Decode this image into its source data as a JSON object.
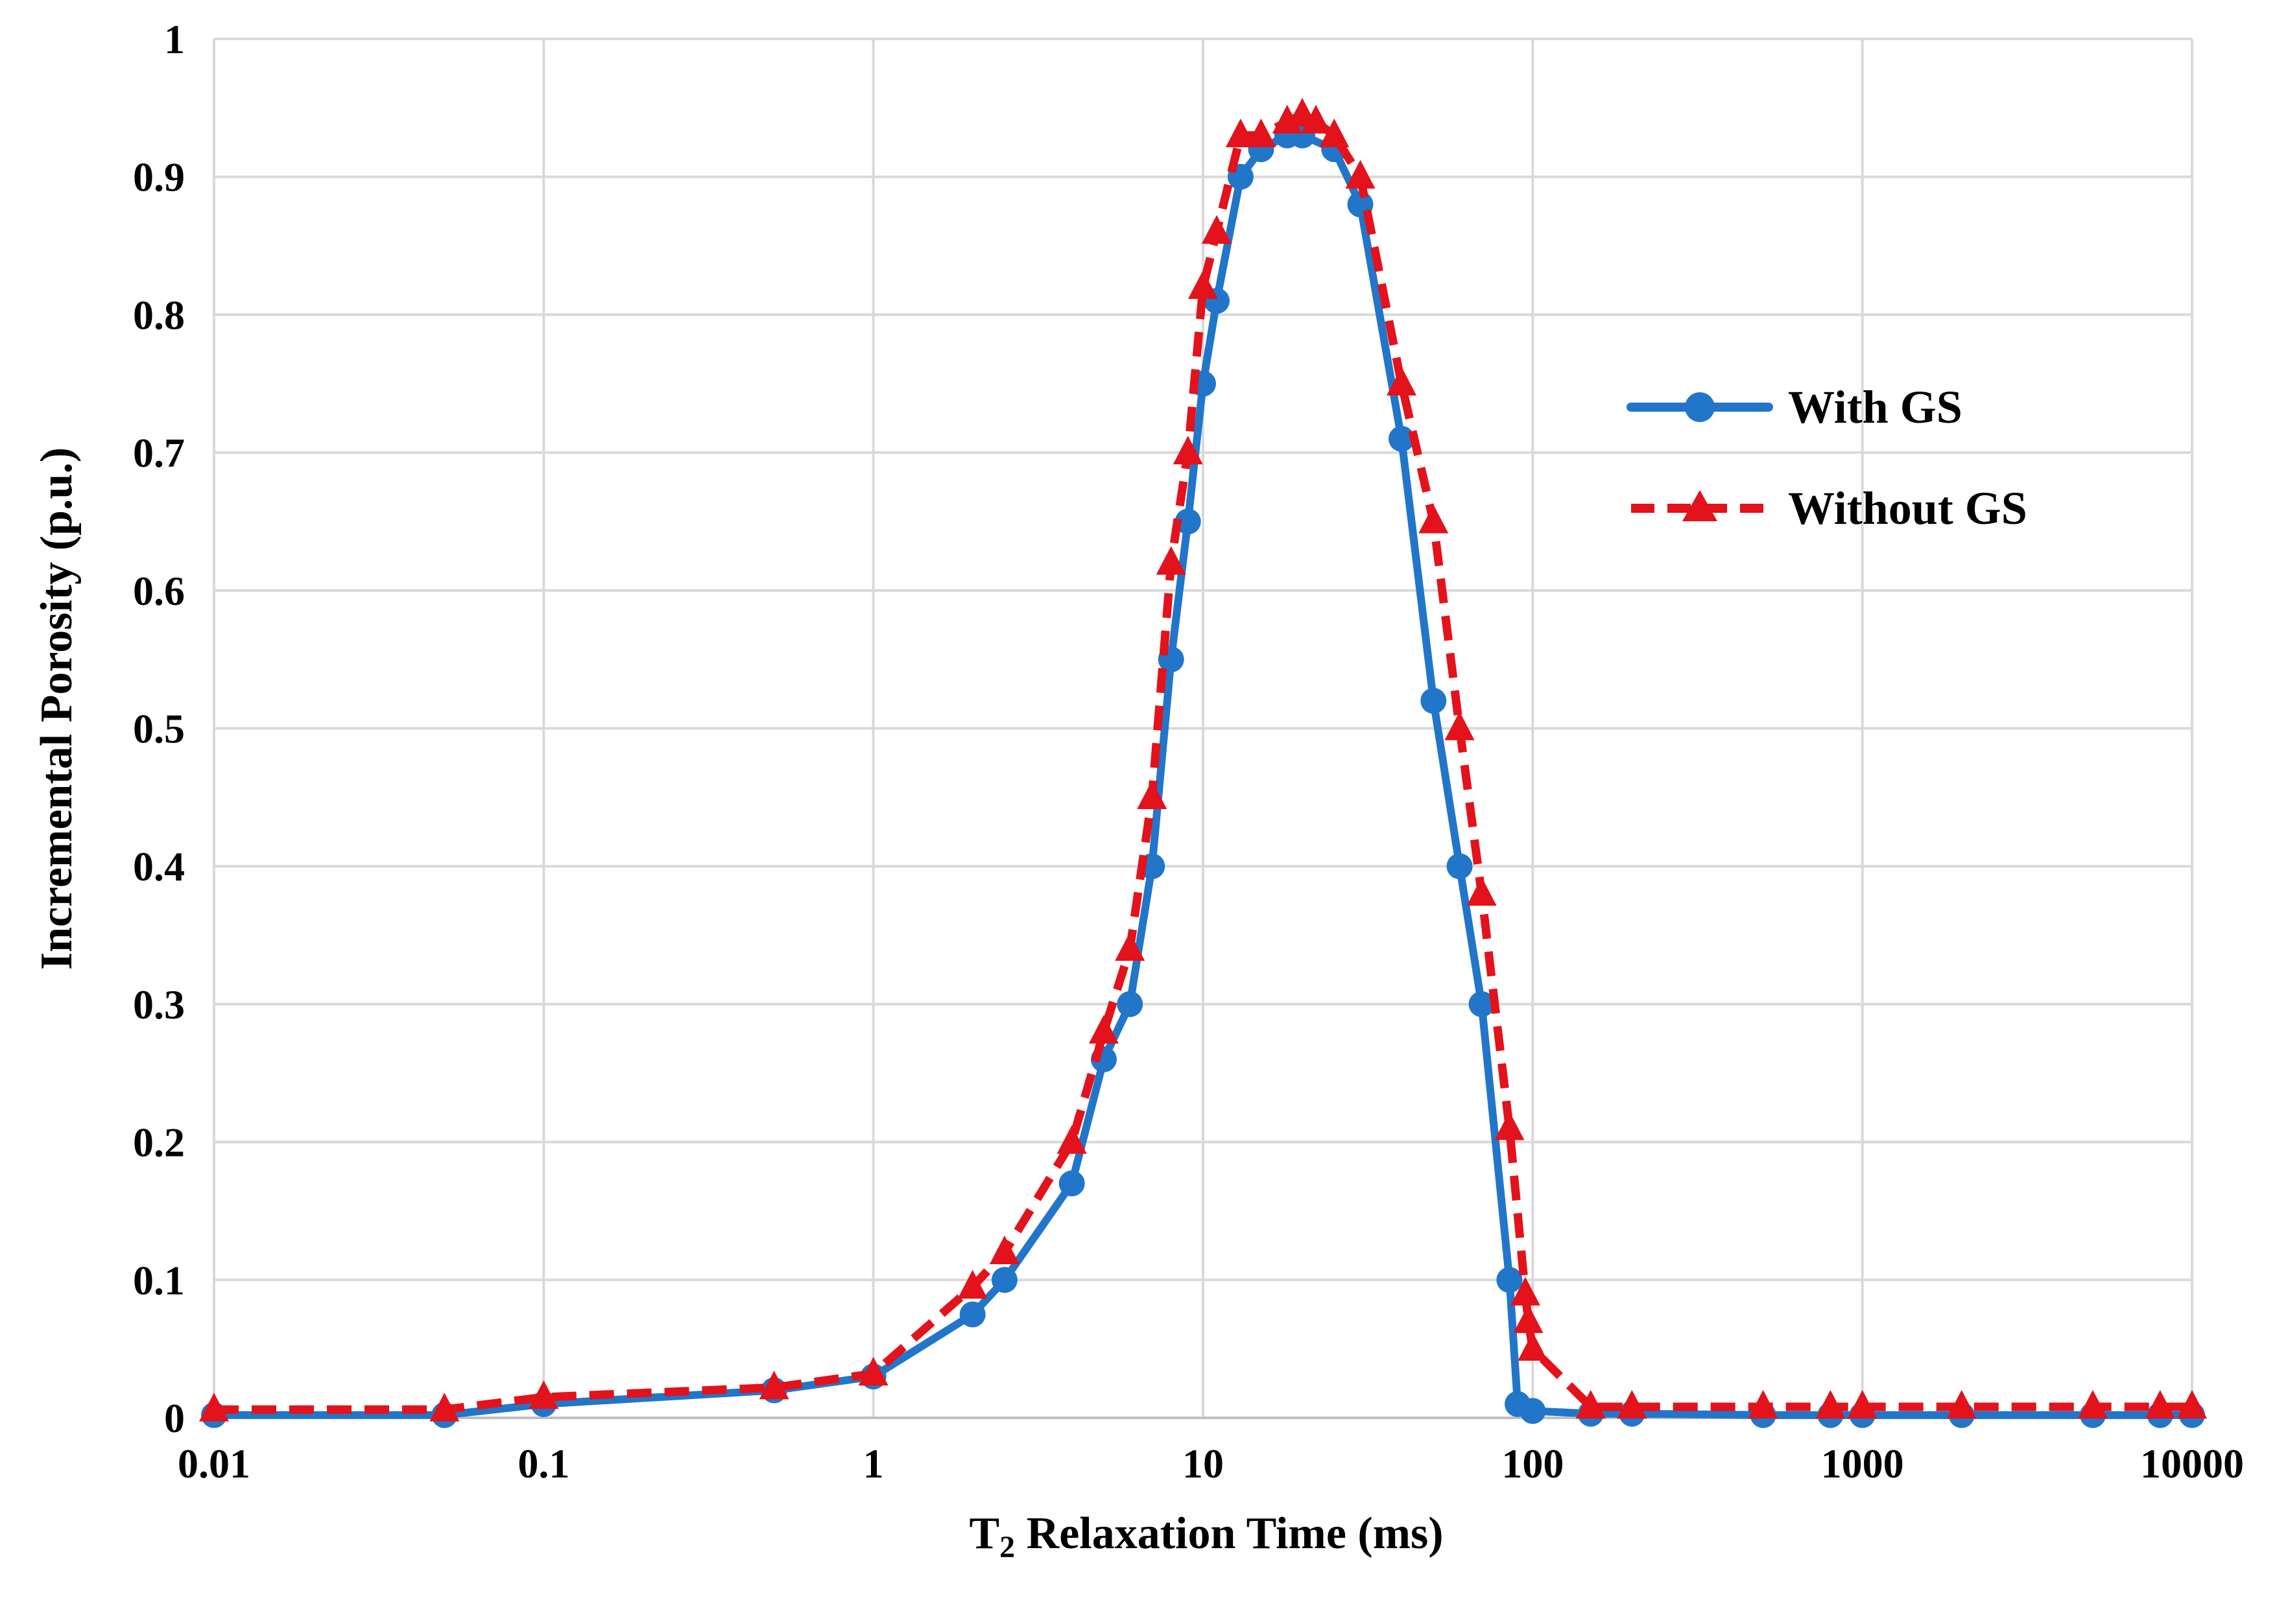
{
  "chart_data": {
    "type": "line",
    "title": "",
    "xlabel": {
      "prefix": "T",
      "subscript": "2",
      "suffix": " Relaxation Time (ms)"
    },
    "ylabel": "Incremental Porosity (p.u.)",
    "xscale": "log",
    "xlim": [
      0.01,
      10000
    ],
    "ylim": [
      0,
      1
    ],
    "grid": true,
    "legend_position": "right",
    "x_ticks": [
      {
        "value": 0.01,
        "label": "0.01"
      },
      {
        "value": 0.1,
        "label": "0.1"
      },
      {
        "value": 1,
        "label": "1"
      },
      {
        "value": 10,
        "label": "10"
      },
      {
        "value": 100,
        "label": "100"
      },
      {
        "value": 1000,
        "label": "1000"
      },
      {
        "value": 10000,
        "label": "10000"
      }
    ],
    "y_ticks": [
      {
        "value": 0,
        "label": "0"
      },
      {
        "value": 0.1,
        "label": "0.1"
      },
      {
        "value": 0.2,
        "label": "0.2"
      },
      {
        "value": 0.3,
        "label": "0.3"
      },
      {
        "value": 0.4,
        "label": "0.4"
      },
      {
        "value": 0.5,
        "label": "0.5"
      },
      {
        "value": 0.6,
        "label": "0.6"
      },
      {
        "value": 0.7,
        "label": "0.7"
      },
      {
        "value": 0.8,
        "label": "0.8"
      },
      {
        "value": 0.9,
        "label": "0.9"
      },
      {
        "value": 1,
        "label": "1"
      }
    ],
    "series": [
      {
        "name": "With GS",
        "color": "#2176C9",
        "line_style": "solid",
        "marker": "circle",
        "x": [
          0.01,
          0.05,
          0.1,
          0.5,
          1,
          2,
          2.5,
          4,
          5,
          6,
          7,
          8,
          9,
          10,
          11,
          13,
          15,
          18,
          20,
          25,
          30,
          40,
          50,
          60,
          70,
          85,
          90,
          100,
          150,
          200,
          500,
          800,
          1000,
          2000,
          5000,
          8000,
          10000
        ],
        "y": [
          0.002,
          0.002,
          0.01,
          0.02,
          0.03,
          0.075,
          0.1,
          0.17,
          0.26,
          0.3,
          0.4,
          0.55,
          0.65,
          0.75,
          0.81,
          0.9,
          0.92,
          0.93,
          0.93,
          0.92,
          0.88,
          0.71,
          0.52,
          0.4,
          0.3,
          0.1,
          0.01,
          0.005,
          0.003,
          0.003,
          0.002,
          0.002,
          0.002,
          0.002,
          0.002,
          0.002,
          0.002
        ]
      },
      {
        "name": "Without GS",
        "color": "#E3121B",
        "line_style": "dashed",
        "marker": "triangle",
        "x": [
          0.01,
          0.05,
          0.1,
          0.5,
          1,
          2,
          2.5,
          4,
          5,
          6,
          7,
          8,
          9,
          10,
          11,
          13,
          15,
          18,
          20,
          22,
          25,
          30,
          40,
          50,
          60,
          70,
          85,
          95,
          97,
          100,
          150,
          200,
          500,
          800,
          1000,
          2000,
          5000,
          8000,
          10000
        ],
        "y": [
          0.006,
          0.006,
          0.015,
          0.022,
          0.032,
          0.095,
          0.12,
          0.2,
          0.28,
          0.34,
          0.45,
          0.62,
          0.7,
          0.82,
          0.86,
          0.93,
          0.93,
          0.94,
          0.945,
          0.94,
          0.93,
          0.9,
          0.75,
          0.65,
          0.5,
          0.38,
          0.21,
          0.09,
          0.07,
          0.05,
          0.008,
          0.008,
          0.008,
          0.008,
          0.008,
          0.008,
          0.008,
          0.008,
          0.008
        ]
      }
    ]
  }
}
